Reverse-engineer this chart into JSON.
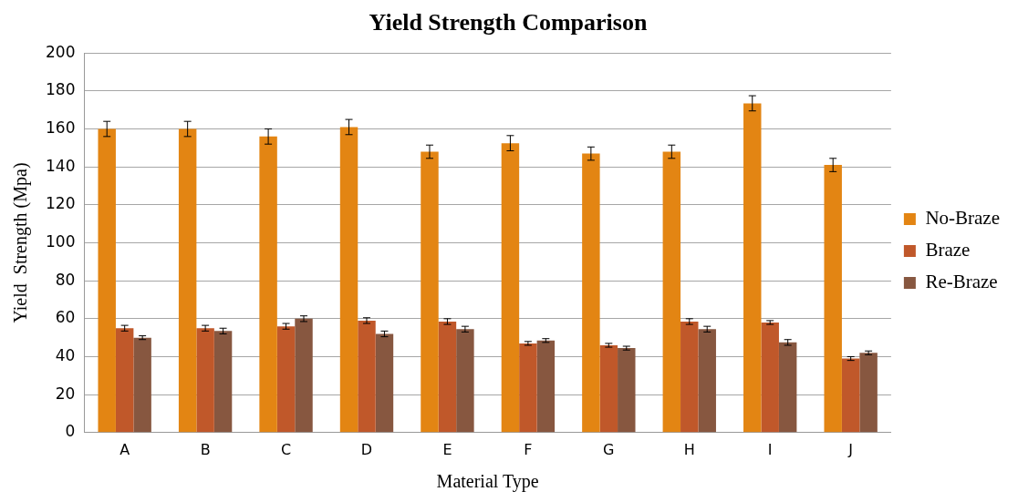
{
  "chart_data": {
    "type": "bar",
    "title": "Yield Strength Comparison",
    "xlabel": "Material Type",
    "ylabel": "Yield  Strength (Mpa)",
    "categories": [
      "A",
      "B",
      "C",
      "D",
      "E",
      "F",
      "G",
      "H",
      "I",
      "J"
    ],
    "series": [
      {
        "name": "No-Braze",
        "color": "#e38513",
        "values": [
          160,
          160,
          156,
          161,
          148,
          152.5,
          147,
          148,
          173.5,
          141
        ],
        "errors": [
          4,
          4,
          4,
          4,
          3.5,
          4,
          3.5,
          3.5,
          4,
          3.5
        ]
      },
      {
        "name": "Braze",
        "color": "#c0582a",
        "values": [
          55,
          55,
          56,
          59,
          58.5,
          47,
          46,
          58.5,
          58,
          39
        ],
        "errors": [
          1.5,
          1.5,
          1.5,
          1.5,
          1.5,
          1,
          1,
          1.5,
          1,
          1
        ]
      },
      {
        "name": "Re-Braze",
        "color": "#875740",
        "values": [
          50,
          53.5,
          60,
          52,
          54.5,
          48.5,
          44.5,
          54.5,
          47.5,
          42
        ],
        "errors": [
          1,
          1.5,
          1.5,
          1.5,
          1.5,
          1,
          1,
          1.5,
          1.5,
          1
        ]
      }
    ],
    "ylim": [
      0,
      200
    ],
    "yticks": [
      0,
      20,
      40,
      60,
      80,
      100,
      120,
      140,
      160,
      180,
      200
    ],
    "grid": "y",
    "legend": "right"
  }
}
